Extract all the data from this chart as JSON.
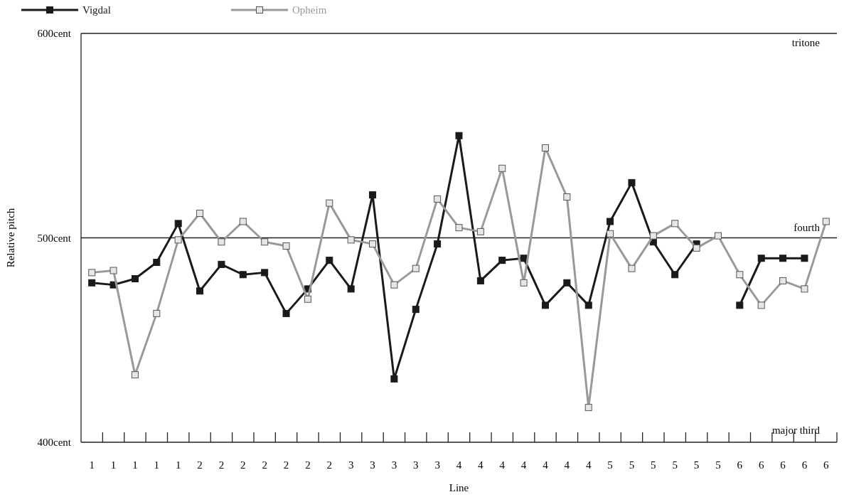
{
  "chart_data": {
    "type": "line",
    "xlabel": "Line",
    "ylabel": "Relative pitch",
    "categories": [
      "1",
      "1",
      "1",
      "1",
      "1",
      "2",
      "2",
      "2",
      "2",
      "2",
      "2",
      "2",
      "3",
      "3",
      "3",
      "3",
      "3",
      "4",
      "4",
      "4",
      "4",
      "4",
      "4",
      "4",
      "5",
      "5",
      "5",
      "5",
      "5",
      "5",
      "6",
      "6",
      "6",
      "6",
      "6"
    ],
    "series": [
      {
        "name": "Vigdal",
        "color": "#1a1a1a",
        "values": [
          478,
          477,
          480,
          488,
          507,
          474,
          487,
          482,
          483,
          463,
          475,
          489,
          475,
          521,
          431,
          465,
          497,
          550,
          479,
          489,
          490,
          467,
          478,
          467,
          508,
          527,
          498,
          482,
          497,
          null,
          467,
          490,
          490,
          490,
          null
        ]
      },
      {
        "name": "Opheim",
        "color": "#999999",
        "values": [
          483,
          484,
          433,
          463,
          499,
          512,
          498,
          508,
          498,
          496,
          470,
          517,
          499,
          497,
          477,
          485,
          519,
          505,
          503,
          534,
          478,
          544,
          520,
          417,
          502,
          485,
          501,
          507,
          495,
          501,
          482,
          467,
          479,
          475,
          508
        ]
      }
    ],
    "ylim": [
      400,
      600
    ],
    "yticks": [
      {
        "value": 400,
        "label": "400cent"
      },
      {
        "value": 500,
        "label": "500cent"
      },
      {
        "value": 600,
        "label": "600cent"
      }
    ],
    "ref_lines": [
      {
        "axis": "y",
        "value": 500,
        "label": "fourth"
      }
    ],
    "annotations": [
      "tritone",
      "major third"
    ],
    "marker": "square",
    "legend": "top left",
    "grid": false
  }
}
